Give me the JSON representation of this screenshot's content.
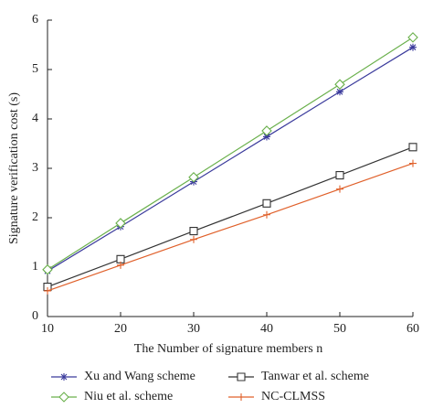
{
  "chart_data": {
    "type": "line",
    "xlabel": "The Number of signature members n",
    "ylabel": "Signature verification cost (s)",
    "x": [
      10,
      20,
      30,
      40,
      50,
      60
    ],
    "xlim": [
      10,
      60
    ],
    "xticks": [
      10,
      20,
      30,
      40,
      50,
      60
    ],
    "ylim": [
      0,
      6
    ],
    "yticks": [
      0,
      1,
      2,
      3,
      4,
      5,
      6
    ],
    "grid": false,
    "legend": "bottom",
    "series": [
      {
        "name": "Xu and Wang scheme",
        "color": "#3b3b9c",
        "marker": "asterisk",
        "values": [
          0.92,
          1.82,
          2.73,
          3.64,
          4.55,
          5.45
        ]
      },
      {
        "name": "Tanwar et al. scheme",
        "color": "#333333",
        "marker": "square",
        "values": [
          0.6,
          1.16,
          1.73,
          2.29,
          2.86,
          3.43
        ]
      },
      {
        "name": "Niu et al. scheme",
        "color": "#6ab04c",
        "marker": "diamond",
        "values": [
          0.95,
          1.89,
          2.82,
          3.76,
          4.7,
          5.65
        ]
      },
      {
        "name": "NC-CLMSS",
        "color": "#e0602a",
        "marker": "plus",
        "values": [
          0.52,
          1.04,
          1.56,
          2.06,
          2.58,
          3.1
        ]
      }
    ]
  }
}
